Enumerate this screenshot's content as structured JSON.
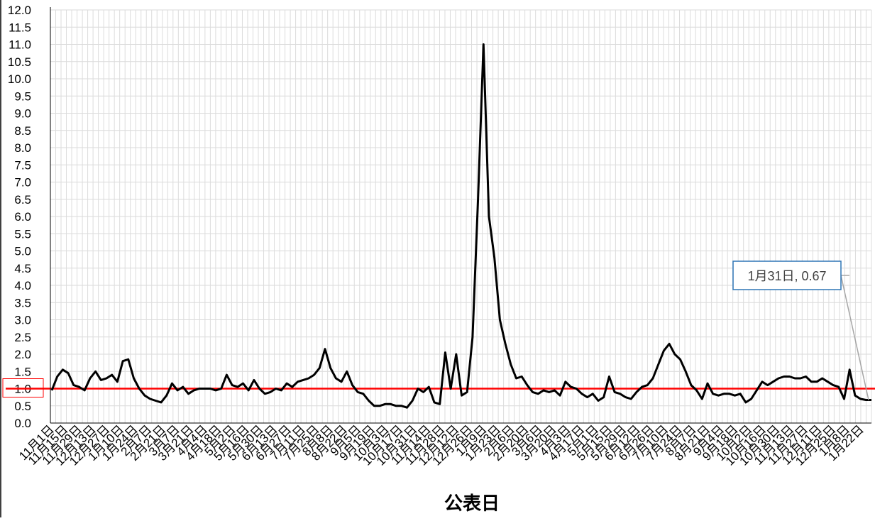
{
  "chart_data": {
    "type": "line",
    "title": "",
    "xlabel": "公表日",
    "ylabel": "",
    "ylim": [
      0,
      12
    ],
    "yticks": [
      "0.0",
      "0.5",
      "1.0",
      "1.5",
      "2.0",
      "2.5",
      "3.0",
      "3.5",
      "4.0",
      "4.5",
      "5.0",
      "5.5",
      "6.0",
      "6.5",
      "7.0",
      "7.5",
      "8.0",
      "8.5",
      "9.0",
      "9.5",
      "10.0",
      "10.5",
      "11.0",
      "11.5",
      "12.0"
    ],
    "grid": true,
    "x_ticks": [
      "11月1日",
      "11月15日",
      "11月29日",
      "12月13日",
      "12月27日",
      "1月10日",
      "1月24日",
      "2月7日",
      "2月21日",
      "3月7日",
      "3月21日",
      "4月4日",
      "4月18日",
      "5月2日",
      "5月16日",
      "5月30日",
      "6月13日",
      "6月27日",
      "7月11日",
      "7月25日",
      "8月8日",
      "8月22日",
      "9月5日",
      "9月19日",
      "10月3日",
      "10月17日",
      "10月31日",
      "11月14日",
      "11月28日",
      "12月12日",
      "12月26日",
      "1月9日",
      "1月23日",
      "2月6日",
      "2月20日",
      "3月6日",
      "3月20日",
      "4月3日",
      "4月17日",
      "5月1日",
      "5月15日",
      "5月29日",
      "6月12日",
      "6月26日",
      "7月10日",
      "7月24日",
      "8月7日",
      "8月21日",
      "9月4日",
      "9月18日",
      "10月2日",
      "10月16日",
      "10月30日",
      "11月13日",
      "11月27日",
      "12月11日",
      "12月25日",
      "1月8日",
      "1月22日"
    ],
    "series": [
      {
        "name": "",
        "color": "#000000",
        "values": [
          0.95,
          1.35,
          1.55,
          1.45,
          1.1,
          1.05,
          0.95,
          1.3,
          1.5,
          1.25,
          1.3,
          1.4,
          1.2,
          1.8,
          1.85,
          1.3,
          1.0,
          0.8,
          0.7,
          0.65,
          0.6,
          0.8,
          1.15,
          0.95,
          1.05,
          0.85,
          0.95,
          1.0,
          1.0,
          1.0,
          0.95,
          1.0,
          1.4,
          1.1,
          1.05,
          1.15,
          0.95,
          1.25,
          1.0,
          0.85,
          0.9,
          1.0,
          0.95,
          1.15,
          1.05,
          1.2,
          1.25,
          1.3,
          1.4,
          1.6,
          2.15,
          1.6,
          1.3,
          1.2,
          1.5,
          1.1,
          0.9,
          0.85,
          0.65,
          0.5,
          0.5,
          0.55,
          0.55,
          0.5,
          0.5,
          0.45,
          0.65,
          1.0,
          0.9,
          1.05,
          0.6,
          0.55,
          2.05,
          1.0,
          2.0,
          0.8,
          0.9,
          2.5,
          6.5,
          11.0,
          6.0,
          4.8,
          3.0,
          2.3,
          1.7,
          1.3,
          1.35,
          1.1,
          0.9,
          0.85,
          0.95,
          0.9,
          0.95,
          0.8,
          1.2,
          1.05,
          1.0,
          0.85,
          0.75,
          0.85,
          0.65,
          0.75,
          1.35,
          0.9,
          0.85,
          0.75,
          0.7,
          0.9,
          1.05,
          1.1,
          1.3,
          1.7,
          2.1,
          2.3,
          2.0,
          1.85,
          1.5,
          1.1,
          0.95,
          0.7,
          1.15,
          0.85,
          0.8,
          0.85,
          0.85,
          0.8,
          0.85,
          0.6,
          0.7,
          0.95,
          1.2,
          1.1,
          1.2,
          1.3,
          1.35,
          1.35,
          1.3,
          1.3,
          1.35,
          1.2,
          1.2,
          1.3,
          1.2,
          1.1,
          1.05,
          0.7,
          1.55,
          0.8,
          0.7,
          0.67,
          0.67
        ]
      }
    ],
    "reference_line": {
      "value": 1.0,
      "color": "#ff0000"
    },
    "highlight_tick": "1.0",
    "data_label": {
      "text": "1月31日, 0.67",
      "x": "1月31日",
      "y": 0.67
    }
  }
}
